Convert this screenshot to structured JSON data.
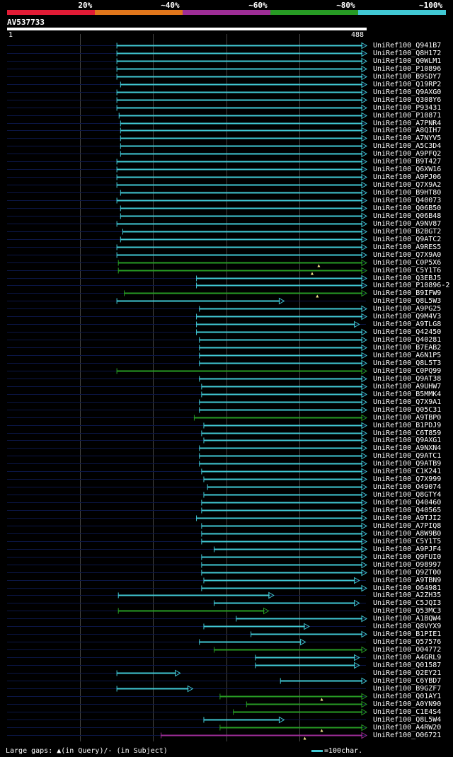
{
  "legend": {
    "segments": [
      {
        "label": "20%",
        "color": "#e11b35"
      },
      {
        "label": "~40%",
        "color": "#e0761b"
      },
      {
        "label": "~60%",
        "color": "#9d2d96"
      },
      {
        "label": "~80%",
        "color": "#279b24"
      },
      {
        "label": "~100%",
        "color": "#41c8d4"
      }
    ]
  },
  "query": {
    "name": "AV537733",
    "start": "1",
    "end": "488",
    "length": 488
  },
  "colors": {
    "faint": "#0b1646",
    "identity_100": "#41c8d4",
    "identity_80": "#279b24",
    "identity_60": "#9d2d96",
    "gap_marker": "#f4e68c"
  },
  "hits": [
    {
      "name": "UniRef100_Q941B7",
      "start": 150,
      "end": 488,
      "color": "cyan"
    },
    {
      "name": "UniRef100_Q8H172",
      "start": 150,
      "end": 488,
      "color": "cyan"
    },
    {
      "name": "UniRef100_Q0WLM1",
      "start": 150,
      "end": 488,
      "color": "cyan"
    },
    {
      "name": "UniRef100_P10896",
      "start": 150,
      "end": 488,
      "color": "cyan"
    },
    {
      "name": "UniRef100_B9SDY7",
      "start": 150,
      "end": 488,
      "color": "cyan"
    },
    {
      "name": "UniRef100_Q19RP2",
      "start": 155,
      "end": 488,
      "color": "cyan"
    },
    {
      "name": "UniRef100_Q9AXG0",
      "start": 150,
      "end": 488,
      "color": "cyan"
    },
    {
      "name": "UniRef100_Q308Y6",
      "start": 150,
      "end": 488,
      "color": "cyan"
    },
    {
      "name": "UniRef100_P93431",
      "start": 150,
      "end": 488,
      "color": "cyan"
    },
    {
      "name": "UniRef100_P10871",
      "start": 153,
      "end": 488,
      "color": "cyan"
    },
    {
      "name": "UniRef100_A7PNR4",
      "start": 155,
      "end": 488,
      "color": "cyan"
    },
    {
      "name": "UniRef100_A8QIH7",
      "start": 155,
      "end": 488,
      "color": "cyan"
    },
    {
      "name": "UniRef100_A7NYV5",
      "start": 155,
      "end": 488,
      "color": "cyan"
    },
    {
      "name": "UniRef100_A5C3D4",
      "start": 155,
      "end": 488,
      "color": "cyan"
    },
    {
      "name": "UniRef100_A9PFQ2",
      "start": 155,
      "end": 488,
      "color": "cyan"
    },
    {
      "name": "UniRef100_B9T427",
      "start": 150,
      "end": 488,
      "color": "cyan"
    },
    {
      "name": "UniRef100_Q6XW16",
      "start": 150,
      "end": 488,
      "color": "cyan"
    },
    {
      "name": "UniRef100_A9PJ06",
      "start": 150,
      "end": 488,
      "color": "cyan"
    },
    {
      "name": "UniRef100_Q7X9A2",
      "start": 150,
      "end": 488,
      "color": "cyan"
    },
    {
      "name": "UniRef100_B9HT80",
      "start": 155,
      "end": 488,
      "color": "cyan"
    },
    {
      "name": "UniRef100_Q40073",
      "start": 150,
      "end": 488,
      "color": "cyan"
    },
    {
      "name": "UniRef100_Q06B50",
      "start": 155,
      "end": 488,
      "color": "cyan"
    },
    {
      "name": "UniRef100_Q06B48",
      "start": 155,
      "end": 488,
      "color": "cyan"
    },
    {
      "name": "UniRef100_A9NV87",
      "start": 150,
      "end": 488,
      "color": "cyan"
    },
    {
      "name": "UniRef100_B2BGT2",
      "start": 158,
      "end": 488,
      "color": "cyan"
    },
    {
      "name": "UniRef100_Q9ATC2",
      "start": 155,
      "end": 488,
      "color": "cyan"
    },
    {
      "name": "UniRef100_A9RES5",
      "start": 150,
      "end": 488,
      "color": "cyan"
    },
    {
      "name": "UniRef100_Q7X9A0",
      "start": 150,
      "end": 488,
      "color": "cyan"
    },
    {
      "name": "UniRef100_C0P5X6",
      "start": 152,
      "end": 488,
      "color": "green",
      "gap_q": 424
    },
    {
      "name": "UniRef100_C5Y1T6",
      "start": 152,
      "end": 488,
      "color": "green",
      "gap_q": 415
    },
    {
      "name": "UniRef100_Q3EBJ5",
      "start": 258,
      "end": 488,
      "color": "cyan"
    },
    {
      "name": "UniRef100_P10896-2",
      "start": 258,
      "end": 488,
      "color": "cyan"
    },
    {
      "name": "UniRef100_B9IFW9",
      "start": 160,
      "end": 488,
      "color": "green",
      "gap_q": 422
    },
    {
      "name": "UniRef100_Q8L5W3",
      "start": 150,
      "end": 376,
      "color": "cyan"
    },
    {
      "name": "UniRef100_A9PG25",
      "start": 262,
      "end": 488,
      "color": "cyan"
    },
    {
      "name": "UniRef100_Q9M4V3",
      "start": 258,
      "end": 488,
      "color": "cyan"
    },
    {
      "name": "UniRef100_A9TLG8",
      "start": 258,
      "end": 478,
      "color": "cyan"
    },
    {
      "name": "UniRef100_Q42450",
      "start": 258,
      "end": 488,
      "color": "cyan"
    },
    {
      "name": "UniRef100_Q40281",
      "start": 262,
      "end": 488,
      "color": "cyan"
    },
    {
      "name": "UniRef100_B7EAB2",
      "start": 262,
      "end": 488,
      "color": "cyan"
    },
    {
      "name": "UniRef100_A6N1P5",
      "start": 262,
      "end": 488,
      "color": "cyan"
    },
    {
      "name": "UniRef100_Q8L5T3",
      "start": 262,
      "end": 488,
      "color": "cyan"
    },
    {
      "name": "UniRef100_C0PQ99",
      "start": 150,
      "end": 488,
      "color": "green"
    },
    {
      "name": "UniRef100_Q9AT38",
      "start": 262,
      "end": 488,
      "color": "cyan"
    },
    {
      "name": "UniRef100_A9UHW7",
      "start": 265,
      "end": 488,
      "color": "cyan"
    },
    {
      "name": "UniRef100_B5MMK4",
      "start": 265,
      "end": 488,
      "color": "cyan"
    },
    {
      "name": "UniRef100_Q7X9A1",
      "start": 262,
      "end": 488,
      "color": "cyan"
    },
    {
      "name": "UniRef100_Q05C31",
      "start": 262,
      "end": 488,
      "color": "cyan"
    },
    {
      "name": "UniRef100_A9TBP0",
      "start": 255,
      "end": 488,
      "color": "green"
    },
    {
      "name": "UniRef100_B1PDJ9",
      "start": 268,
      "end": 488,
      "color": "cyan"
    },
    {
      "name": "UniRef100_C6T859",
      "start": 265,
      "end": 488,
      "color": "cyan"
    },
    {
      "name": "UniRef100_Q9AXG1",
      "start": 268,
      "end": 488,
      "color": "cyan"
    },
    {
      "name": "UniRef100_A9NXN4",
      "start": 262,
      "end": 488,
      "color": "cyan"
    },
    {
      "name": "UniRef100_Q9ATC1",
      "start": 262,
      "end": 488,
      "color": "cyan"
    },
    {
      "name": "UniRef100_Q9ATB9",
      "start": 262,
      "end": 488,
      "color": "cyan"
    },
    {
      "name": "UniRef100_C1K241",
      "start": 265,
      "end": 488,
      "color": "cyan"
    },
    {
      "name": "UniRef100_Q7X999",
      "start": 268,
      "end": 488,
      "color": "cyan"
    },
    {
      "name": "UniRef100_O49074",
      "start": 273,
      "end": 488,
      "color": "cyan"
    },
    {
      "name": "UniRef100_Q8GTY4",
      "start": 268,
      "end": 488,
      "color": "cyan"
    },
    {
      "name": "UniRef100_Q40460",
      "start": 265,
      "end": 488,
      "color": "cyan"
    },
    {
      "name": "UniRef100_Q40565",
      "start": 265,
      "end": 488,
      "color": "cyan"
    },
    {
      "name": "UniRef100_A9TJI2",
      "start": 258,
      "end": 488,
      "color": "cyan"
    },
    {
      "name": "UniRef100_A7PIQ8",
      "start": 265,
      "end": 488,
      "color": "cyan"
    },
    {
      "name": "UniRef100_A8W9B0",
      "start": 265,
      "end": 488,
      "color": "cyan"
    },
    {
      "name": "UniRef100_C5Y1T5",
      "start": 265,
      "end": 488,
      "color": "cyan"
    },
    {
      "name": "UniRef100_A9PJF4",
      "start": 282,
      "end": 488,
      "color": "cyan"
    },
    {
      "name": "UniRef100_Q9FUI0",
      "start": 265,
      "end": 488,
      "color": "cyan"
    },
    {
      "name": "UniRef100_O98997",
      "start": 265,
      "end": 488,
      "color": "cyan"
    },
    {
      "name": "UniRef100_Q9ZT00",
      "start": 265,
      "end": 488,
      "color": "cyan"
    },
    {
      "name": "UniRef100_A9TBN9",
      "start": 268,
      "end": 478,
      "color": "cyan"
    },
    {
      "name": "UniRef100_O64981",
      "start": 265,
      "end": 488,
      "color": "cyan"
    },
    {
      "name": "UniRef100_A2ZH35",
      "start": 152,
      "end": 362,
      "color": "cyan"
    },
    {
      "name": "UniRef100_C5JQI3",
      "start": 282,
      "end": 478,
      "color": "cyan"
    },
    {
      "name": "UniRef100_Q53MC3",
      "start": 152,
      "end": 355,
      "color": "green"
    },
    {
      "name": "UniRef100_A1BQW4",
      "start": 312,
      "end": 488,
      "color": "cyan"
    },
    {
      "name": "UniRef100_Q8VYX9",
      "start": 268,
      "end": 410,
      "color": "cyan"
    },
    {
      "name": "UniRef100_B1PIE1",
      "start": 332,
      "end": 488,
      "color": "cyan"
    },
    {
      "name": "UniRef100_Q57576",
      "start": 262,
      "end": 405,
      "color": "cyan"
    },
    {
      "name": "UniRef100_O04772",
      "start": 282,
      "end": 488,
      "color": "green"
    },
    {
      "name": "UniRef100_A4GRL9",
      "start": 338,
      "end": 478,
      "color": "cyan"
    },
    {
      "name": "UniRef100_Q01587",
      "start": 338,
      "end": 478,
      "color": "cyan"
    },
    {
      "name": "UniRef100_Q2EY21",
      "start": 150,
      "end": 235,
      "color": "cyan"
    },
    {
      "name": "UniRef100_C6YBD7",
      "start": 372,
      "end": 488,
      "color": "cyan"
    },
    {
      "name": "UniRef100_B9GZF7",
      "start": 150,
      "end": 252,
      "color": "cyan"
    },
    {
      "name": "UniRef100_Q01AY1",
      "start": 290,
      "end": 488,
      "color": "green",
      "gap_q": 428
    },
    {
      "name": "UniRef100_A0YN90",
      "start": 326,
      "end": 488,
      "color": "green"
    },
    {
      "name": "UniRef100_C1E4S4",
      "start": 308,
      "end": 488,
      "color": "green"
    },
    {
      "name": "UniRef100_Q8L5W4",
      "start": 268,
      "end": 376,
      "color": "cyan"
    },
    {
      "name": "UniRef100_A4RW20",
      "start": 290,
      "end": 488,
      "color": "green",
      "gap_q": 428
    },
    {
      "name": "UniRef100_O06721",
      "start": 210,
      "end": 488,
      "color": "purple",
      "gap_q": 405
    }
  ],
  "footer": {
    "left": "Large gaps: ▲(in Query)/- (in Subject)",
    "right": "=100char."
  }
}
